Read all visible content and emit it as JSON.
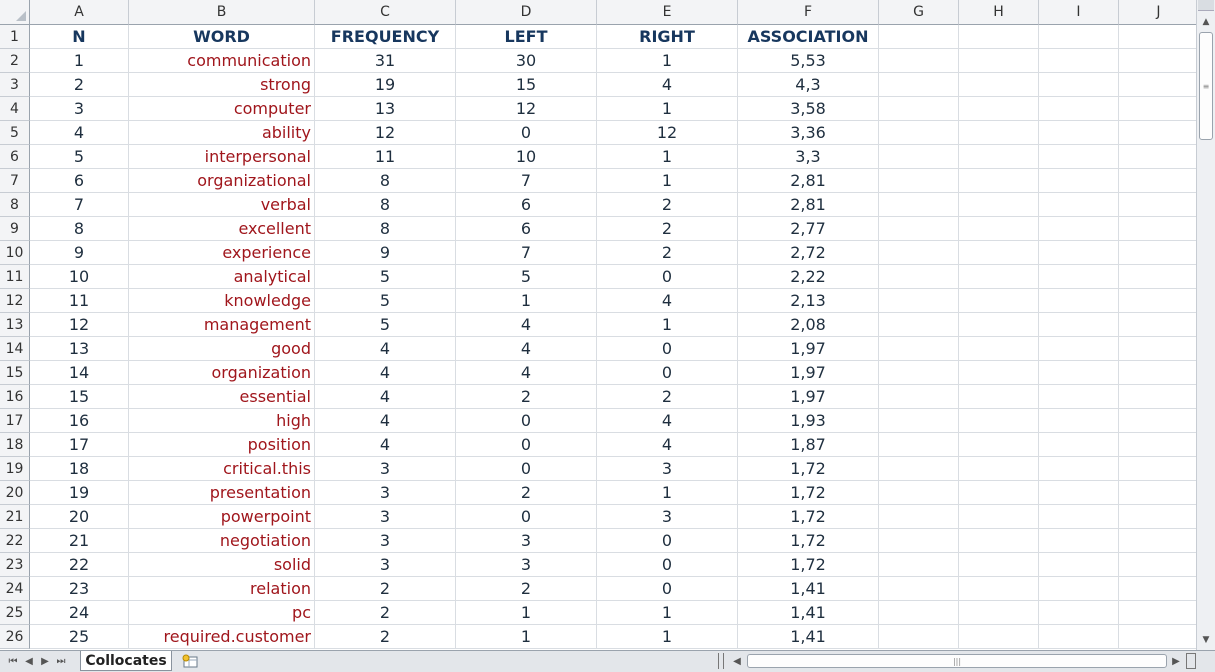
{
  "columns": [
    "A",
    "B",
    "C",
    "D",
    "E",
    "F",
    "G",
    "H",
    "I",
    "J"
  ],
  "header_row": {
    "N": "N",
    "WORD": "WORD",
    "FREQUENCY": "FREQUENCY",
    "LEFT": "LEFT",
    "RIGHT": "RIGHT",
    "ASSOCIATION": "ASSOCIATION"
  },
  "rows": [
    {
      "n": "1",
      "word": "communication",
      "frequency": "31",
      "left": "30",
      "right": "1",
      "association": "5,53"
    },
    {
      "n": "2",
      "word": "strong",
      "frequency": "19",
      "left": "15",
      "right": "4",
      "association": "4,3"
    },
    {
      "n": "3",
      "word": "computer",
      "frequency": "13",
      "left": "12",
      "right": "1",
      "association": "3,58"
    },
    {
      "n": "4",
      "word": "ability",
      "frequency": "12",
      "left": "0",
      "right": "12",
      "association": "3,36"
    },
    {
      "n": "5",
      "word": "interpersonal",
      "frequency": "11",
      "left": "10",
      "right": "1",
      "association": "3,3"
    },
    {
      "n": "6",
      "word": "organizational",
      "frequency": "8",
      "left": "7",
      "right": "1",
      "association": "2,81"
    },
    {
      "n": "7",
      "word": "verbal",
      "frequency": "8",
      "left": "6",
      "right": "2",
      "association": "2,81"
    },
    {
      "n": "8",
      "word": "excellent",
      "frequency": "8",
      "left": "6",
      "right": "2",
      "association": "2,77"
    },
    {
      "n": "9",
      "word": "experience",
      "frequency": "9",
      "left": "7",
      "right": "2",
      "association": "2,72"
    },
    {
      "n": "10",
      "word": "analytical",
      "frequency": "5",
      "left": "5",
      "right": "0",
      "association": "2,22"
    },
    {
      "n": "11",
      "word": "knowledge",
      "frequency": "5",
      "left": "1",
      "right": "4",
      "association": "2,13"
    },
    {
      "n": "12",
      "word": "management",
      "frequency": "5",
      "left": "4",
      "right": "1",
      "association": "2,08"
    },
    {
      "n": "13",
      "word": "good",
      "frequency": "4",
      "left": "4",
      "right": "0",
      "association": "1,97"
    },
    {
      "n": "14",
      "word": "organization",
      "frequency": "4",
      "left": "4",
      "right": "0",
      "association": "1,97"
    },
    {
      "n": "15",
      "word": "essential",
      "frequency": "4",
      "left": "2",
      "right": "2",
      "association": "1,97"
    },
    {
      "n": "16",
      "word": "high",
      "frequency": "4",
      "left": "0",
      "right": "4",
      "association": "1,93"
    },
    {
      "n": "17",
      "word": "position",
      "frequency": "4",
      "left": "0",
      "right": "4",
      "association": "1,87"
    },
    {
      "n": "18",
      "word": "critical.this",
      "frequency": "3",
      "left": "0",
      "right": "3",
      "association": "1,72"
    },
    {
      "n": "19",
      "word": "presentation",
      "frequency": "3",
      "left": "2",
      "right": "1",
      "association": "1,72"
    },
    {
      "n": "20",
      "word": "powerpoint",
      "frequency": "3",
      "left": "0",
      "right": "3",
      "association": "1,72"
    },
    {
      "n": "21",
      "word": "negotiation",
      "frequency": "3",
      "left": "3",
      "right": "0",
      "association": "1,72"
    },
    {
      "n": "22",
      "word": "solid",
      "frequency": "3",
      "left": "3",
      "right": "0",
      "association": "1,72"
    },
    {
      "n": "23",
      "word": "relation",
      "frequency": "2",
      "left": "2",
      "right": "0",
      "association": "1,41"
    },
    {
      "n": "24",
      "word": "pc",
      "frequency": "2",
      "left": "1",
      "right": "1",
      "association": "1,41"
    },
    {
      "n": "25",
      "word": "required.customer",
      "frequency": "2",
      "left": "1",
      "right": "1",
      "association": "1,41"
    }
  ],
  "sheet_tab": {
    "label": "Collocates"
  },
  "icons": {
    "new_sheet": "insert-worksheet-icon",
    "nav_first": "first-sheet-icon",
    "nav_prev": "prev-sheet-icon",
    "nav_next": "next-sheet-icon",
    "nav_last": "last-sheet-icon"
  },
  "colors": {
    "header_text": "#17375e",
    "word_text": "#a0161c"
  }
}
